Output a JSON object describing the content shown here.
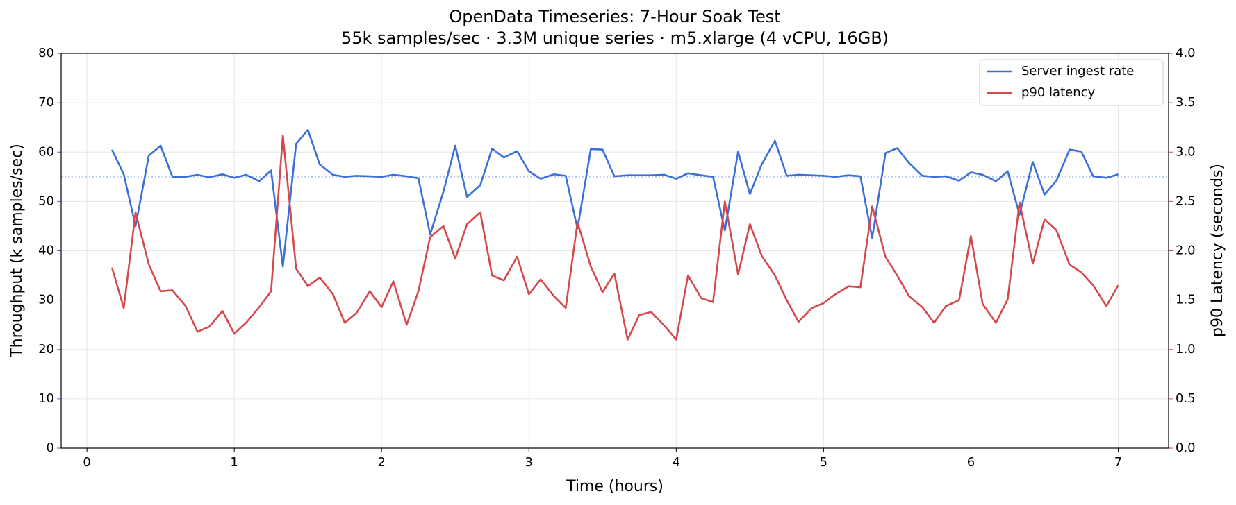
{
  "chart_data": {
    "type": "line",
    "title": "OpenData Timeseries: 7-Hour Soak Test",
    "subtitle": "55k samples/sec · 3.3M unique series · m5.xlarge (4 vCPU, 16GB)",
    "xlabel": "Time (hours)",
    "ylabel": "Throughput (k samples/sec)",
    "y2label": "p90 Latency (seconds)",
    "x": [
      0.17,
      0.25,
      0.33,
      0.42,
      0.5,
      0.58,
      0.67,
      0.75,
      0.83,
      0.92,
      1,
      1.08,
      1.17,
      1.25,
      1.33,
      1.42,
      1.5,
      1.58,
      1.67,
      1.75,
      1.83,
      1.92,
      2,
      2.08,
      2.17,
      2.25,
      2.33,
      2.42,
      2.5,
      2.58,
      2.67,
      2.75,
      2.83,
      2.92,
      3,
      3.08,
      3.17,
      3.25,
      3.33,
      3.42,
      3.5,
      3.58,
      3.67,
      3.75,
      3.83,
      3.92,
      4,
      4.08,
      4.17,
      4.25,
      4.33,
      4.42,
      4.5,
      4.58,
      4.67,
      4.75,
      4.83,
      4.92,
      5,
      5.08,
      5.17,
      5.25,
      5.33,
      5.42,
      5.5,
      5.58,
      5.67,
      5.75,
      5.83,
      5.92,
      6,
      6.08,
      6.17,
      6.25,
      6.33,
      6.42,
      6.5,
      6.58,
      6.67,
      6.75,
      6.83,
      6.92,
      7
    ],
    "series": [
      {
        "name": "Server ingest rate",
        "color": "#3b6fd9",
        "values": [
          60.5,
          55.5,
          45,
          59.3,
          61.3,
          55,
          55,
          55.4,
          54.9,
          55.5,
          54.8,
          55.4,
          54.1,
          56.3,
          36.8,
          61.7,
          64.5,
          57.5,
          55.4,
          55,
          55.2,
          55.1,
          55,
          55.4,
          55.1,
          54.7,
          43.3,
          52,
          61.3,
          50.9,
          53.3,
          60.7,
          58.9,
          60.2,
          56.1,
          54.6,
          55.5,
          55.2,
          44.5,
          60.6,
          60.5,
          55.1,
          55.3,
          55.3,
          55.3,
          55.4,
          54.6,
          55.7,
          55.3,
          55,
          44.1,
          60.1,
          51.5,
          57.5,
          62.3,
          55.2,
          55.4,
          55.3,
          55.2,
          55,
          55.3,
          55.1,
          42.6,
          59.8,
          60.8,
          57.8,
          55.2,
          55,
          55.1,
          54.2,
          55.9,
          55.4,
          54.1,
          56.1,
          47.3,
          58,
          51.4,
          54.2,
          60.5,
          60.1,
          55.1,
          54.8,
          55.5
        ]
      },
      {
        "name": "p90 latency",
        "color": "#d4494c",
        "axis": "y2",
        "values": [
          1.83,
          1.42,
          2.39,
          1.86,
          1.59,
          1.6,
          1.44,
          1.18,
          1.23,
          1.39,
          1.16,
          1.27,
          1.43,
          1.59,
          3.17,
          1.82,
          1.64,
          1.73,
          1.56,
          1.27,
          1.37,
          1.59,
          1.43,
          1.69,
          1.25,
          1.59,
          2.14,
          2.25,
          1.92,
          2.27,
          2.39,
          1.75,
          1.7,
          1.94,
          1.56,
          1.71,
          1.54,
          1.42,
          2.29,
          1.84,
          1.58,
          1.77,
          1.1,
          1.35,
          1.38,
          1.24,
          1.1,
          1.75,
          1.52,
          1.48,
          2.5,
          1.76,
          2.27,
          1.95,
          1.75,
          1.5,
          1.28,
          1.42,
          1.47,
          1.56,
          1.64,
          1.63,
          2.45,
          1.94,
          1.75,
          1.54,
          1.43,
          1.27,
          1.44,
          1.5,
          2.15,
          1.46,
          1.27,
          1.51,
          2.49,
          1.87,
          2.32,
          2.21,
          1.86,
          1.78,
          1.65,
          1.44,
          1.65
        ]
      }
    ],
    "reference_line": {
      "y": 55,
      "color": "#a9c1ef"
    },
    "xlim": [
      -0.175,
      7.342
    ],
    "xticks": [
      0,
      1,
      2,
      3,
      4,
      5,
      6,
      7
    ],
    "ylim": [
      0,
      80
    ],
    "yticks": [
      0,
      10,
      20,
      30,
      40,
      50,
      60,
      70,
      80
    ],
    "y2lim": [
      0,
      4
    ],
    "y2ticks": [
      {
        "value": 0,
        "label": "0.0"
      },
      0.5,
      {
        "value": 1,
        "label": "1.0"
      },
      1.5,
      {
        "value": 2,
        "label": "2.0"
      },
      2.5,
      {
        "value": 3,
        "label": "3.0"
      },
      3.5,
      {
        "value": 4,
        "label": "4.0"
      }
    ],
    "grid": true,
    "legend": "upper right"
  }
}
